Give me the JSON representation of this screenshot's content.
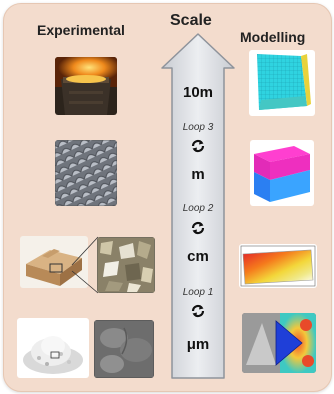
{
  "headings": {
    "experimental": "Experimental",
    "scale": "Scale",
    "modelling": "Modelling"
  },
  "scale_labels": {
    "l10m": "10m",
    "m": "m",
    "cm": "cm",
    "um": "μm"
  },
  "loops": {
    "loop3": "Loop 3",
    "loop2": "Loop 2",
    "loop1": "Loop 1"
  },
  "colors": {
    "panel_background": "#f3dccd",
    "arrow_fill": "#d7d9de",
    "arrow_stroke": "#8e939b"
  }
}
